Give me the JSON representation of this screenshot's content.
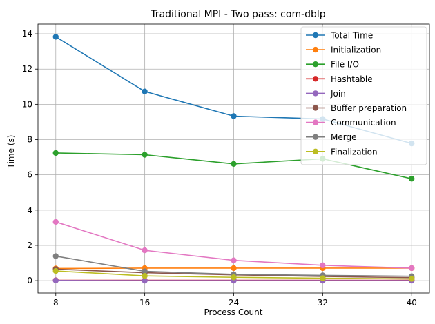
{
  "chart_data": {
    "type": "line",
    "title": "Traditional MPI - Two pass: com-dblp",
    "xlabel": "Process Count",
    "ylabel": "Time (s)",
    "x": [
      8,
      16,
      24,
      32,
      40
    ],
    "xticks": [
      "8",
      "16",
      "24",
      "32",
      "40"
    ],
    "yticks": [
      "0",
      "2",
      "4",
      "6",
      "8",
      "10",
      "12",
      "14"
    ],
    "ylim": [
      -0.7,
      14.55
    ],
    "xlim": [
      6.4,
      41.6
    ],
    "grid": true,
    "legend_position": "top-right",
    "series": [
      {
        "name": "Total Time",
        "color": "#1f77b4",
        "values": [
          13.83,
          10.73,
          9.33,
          9.17,
          7.78
        ]
      },
      {
        "name": "Initialization",
        "color": "#ff7f0e",
        "values": [
          0.69,
          0.71,
          0.71,
          0.71,
          0.71
        ]
      },
      {
        "name": "File I/O",
        "color": "#2ca02c",
        "values": [
          7.24,
          7.14,
          6.62,
          6.91,
          5.78
        ]
      },
      {
        "name": "Hashtable",
        "color": "#d62728",
        "values": [
          0.02,
          0.02,
          0.02,
          0.02,
          0.02
        ]
      },
      {
        "name": "Join",
        "color": "#9467bd",
        "values": [
          0.01,
          0.0,
          0.0,
          0.0,
          0.0
        ]
      },
      {
        "name": "Buffer preparation",
        "color": "#8c564b",
        "values": [
          0.65,
          0.45,
          0.33,
          0.24,
          0.17
        ]
      },
      {
        "name": "Communication",
        "color": "#e377c2",
        "values": [
          3.33,
          1.72,
          1.15,
          0.87,
          0.71
        ]
      },
      {
        "name": "Merge",
        "color": "#7f7f7f",
        "values": [
          1.39,
          0.53,
          0.36,
          0.3,
          0.25
        ]
      },
      {
        "name": "Finalization",
        "color": "#bcbd22",
        "values": [
          0.55,
          0.27,
          0.19,
          0.14,
          0.1
        ]
      }
    ]
  }
}
